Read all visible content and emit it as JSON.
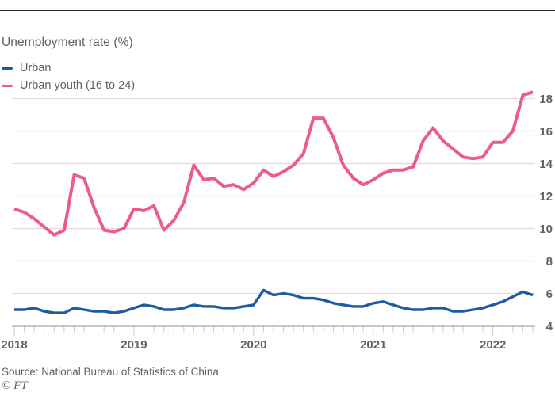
{
  "chart": {
    "title": "Unemployment rate (%)",
    "source": "Source: National Bureau of Statistics of China",
    "credit": "© FT",
    "legend": [
      {
        "label": "Urban",
        "color": "#1d5ca1"
      },
      {
        "label": "Urban youth (16 to 24)",
        "color": "#ed5a8d"
      }
    ]
  },
  "colors": {
    "urban_line": "#1d5ca1",
    "youth_line": "#ed5a8d",
    "gridline": "#e8dcce",
    "tick": "#d9cabb",
    "axis": "#262a33",
    "text": "#66605c",
    "top_rule": "#262a33"
  },
  "chart_data": {
    "type": "line",
    "title": "Unemployment rate (%)",
    "x_unit": "month",
    "x_start": "2018-01",
    "x_end": "2022-05",
    "x_tick_labels": [
      "2018",
      "2019",
      "2020",
      "2021",
      "2022"
    ],
    "y_ticks": [
      4,
      6,
      8,
      10,
      12,
      14,
      16,
      18
    ],
    "ylim": [
      4,
      18.9
    ],
    "grid": "horizontal",
    "legend_position": "top-left",
    "series": [
      {
        "name": "Urban",
        "color": "#1d5ca1",
        "values": [
          5.0,
          5.0,
          5.1,
          4.9,
          4.8,
          4.8,
          5.1,
          5.0,
          4.9,
          4.9,
          4.8,
          4.9,
          5.1,
          5.3,
          5.2,
          5.0,
          5.0,
          5.1,
          5.3,
          5.2,
          5.2,
          5.1,
          5.1,
          5.2,
          5.3,
          6.2,
          5.9,
          6.0,
          5.9,
          5.7,
          5.7,
          5.6,
          5.4,
          5.3,
          5.2,
          5.2,
          5.4,
          5.5,
          5.3,
          5.1,
          5.0,
          5.0,
          5.1,
          5.1,
          4.9,
          4.9,
          5.0,
          5.1,
          5.3,
          5.5,
          5.8,
          6.1,
          5.9
        ]
      },
      {
        "name": "Urban youth (16 to 24)",
        "color": "#ed5a8d",
        "values": [
          11.2,
          11.0,
          10.6,
          10.1,
          9.6,
          9.9,
          13.3,
          13.1,
          11.3,
          9.9,
          9.8,
          10.0,
          11.2,
          11.1,
          11.4,
          9.9,
          10.5,
          11.6,
          13.9,
          13.0,
          13.1,
          12.6,
          12.7,
          12.4,
          12.8,
          13.6,
          13.2,
          13.5,
          13.9,
          14.6,
          16.8,
          16.8,
          15.6,
          13.9,
          13.1,
          12.7,
          13.0,
          13.4,
          13.6,
          13.6,
          13.8,
          15.4,
          16.2,
          15.4,
          14.9,
          14.4,
          14.3,
          14.4,
          15.3,
          15.3,
          16.0,
          18.2,
          18.4
        ]
      }
    ]
  }
}
